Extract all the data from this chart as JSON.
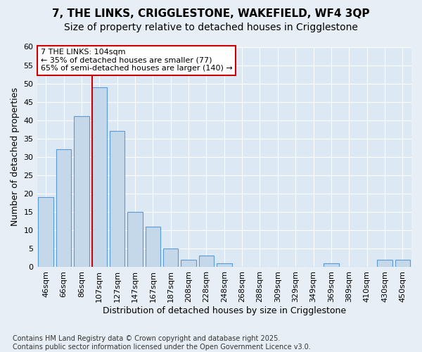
{
  "title_line1": "7, THE LINKS, CRIGGLESTONE, WAKEFIELD, WF4 3QP",
  "title_line2": "Size of property relative to detached houses in Crigglestone",
  "xlabel": "Distribution of detached houses by size in Crigglestone",
  "ylabel": "Number of detached properties",
  "categories": [
    "46sqm",
    "66sqm",
    "86sqm",
    "107sqm",
    "127sqm",
    "147sqm",
    "167sqm",
    "187sqm",
    "208sqm",
    "228sqm",
    "248sqm",
    "268sqm",
    "288sqm",
    "309sqm",
    "329sqm",
    "349sqm",
    "369sqm",
    "389sqm",
    "410sqm",
    "430sqm",
    "450sqm"
  ],
  "values": [
    19,
    32,
    41,
    49,
    37,
    15,
    11,
    5,
    2,
    3,
    1,
    0,
    0,
    0,
    0,
    0,
    1,
    0,
    0,
    2,
    2
  ],
  "bar_color": "#c5d8ea",
  "bar_edge_color": "#5b9bd5",
  "vline_index": 3,
  "vline_color": "#cc0000",
  "annotation_text": "7 THE LINKS: 104sqm\n← 35% of detached houses are smaller (77)\n65% of semi-detached houses are larger (140) →",
  "annotation_box_facecolor": "#ffffff",
  "annotation_box_edgecolor": "#cc0000",
  "ylim": [
    0,
    60
  ],
  "yticks": [
    0,
    5,
    10,
    15,
    20,
    25,
    30,
    35,
    40,
    45,
    50,
    55,
    60
  ],
  "bg_color": "#e8eef5",
  "plot_bg_color": "#dce8f4",
  "footer": "Contains HM Land Registry data © Crown copyright and database right 2025.\nContains public sector information licensed under the Open Government Licence v3.0.",
  "title_fontsize": 11,
  "subtitle_fontsize": 10,
  "axis_label_fontsize": 9,
  "tick_fontsize": 8,
  "annotation_fontsize": 8,
  "footer_fontsize": 7
}
